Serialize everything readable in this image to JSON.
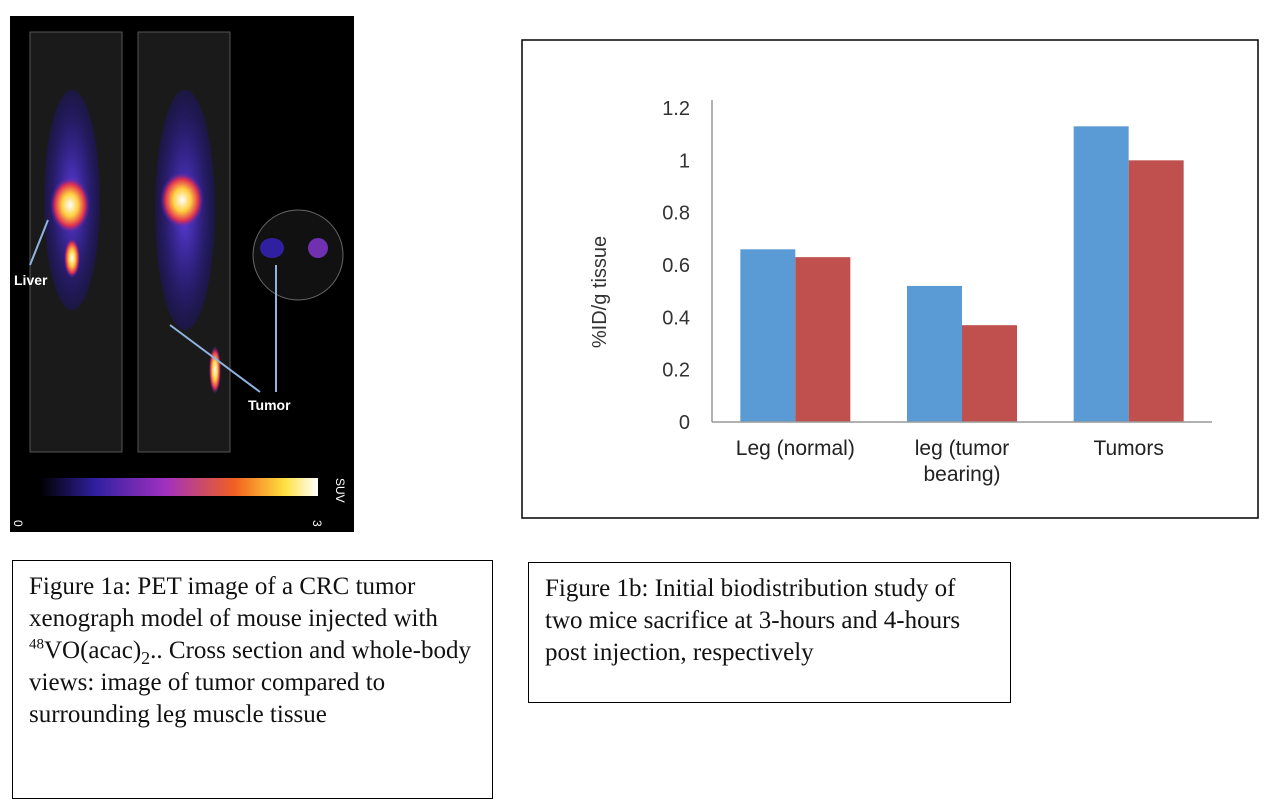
{
  "chart_data": {
    "type": "bar",
    "y_label": "%ID/g tissue",
    "categories": [
      "Leg (normal)",
      "leg (tumor bearing)",
      "Tumors"
    ],
    "series": [
      {
        "color": "#5b9bd5",
        "values": [
          0.66,
          0.52,
          1.13
        ]
      },
      {
        "color": "#c0504d",
        "values": [
          0.63,
          0.37,
          1.0
        ]
      }
    ],
    "ylim": [
      0,
      1.2
    ],
    "yticks": [
      0,
      0.2,
      0.4,
      0.6,
      0.8,
      1,
      1.2
    ],
    "grid": false
  },
  "pet_image": {
    "labels": {
      "liver": "Liver",
      "tumor": "Tumor"
    },
    "colorbar": {
      "min": "0",
      "max": "3",
      "unit": "SUV"
    }
  },
  "caption_1a": {
    "before": "Figure 1a: PET image of a CRC tumor xenograph model of mouse injected with ",
    "sup": "48",
    "mid": "VO(acac)",
    "sub": "2",
    "after": ".. Cross section and whole-body views: image of tumor compared to surrounding leg muscle tissue"
  },
  "caption_1b": "Figure 1b: Initial biodistribution study of two mice sacrifice at 3-hours and 4-hours post injection, respectively"
}
